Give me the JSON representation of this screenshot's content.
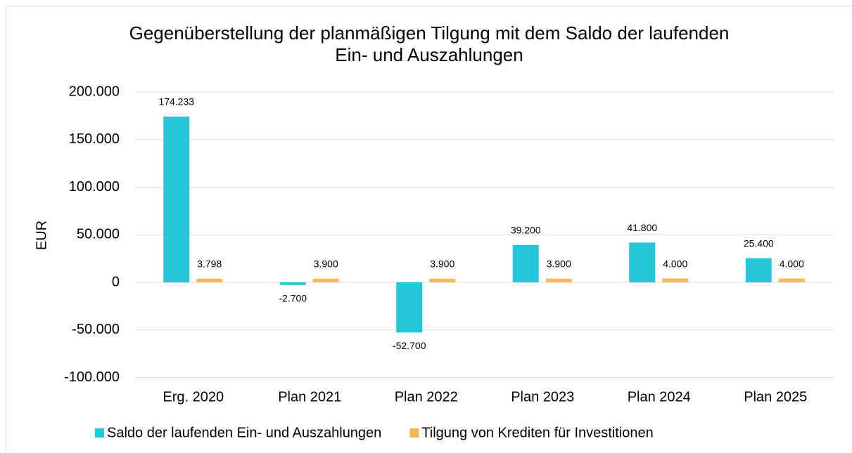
{
  "chart_data": {
    "type": "bar",
    "title": "Gegenüberstellung der planmäßigen Tilgung mit dem Saldo der laufenden Ein- und Auszahlungen",
    "y_label": "EUR",
    "categories": [
      "Erg. 2020",
      "Plan 2021",
      "Plan 2022",
      "Plan 2023",
      "Plan 2024",
      "Plan 2025"
    ],
    "series": [
      {
        "name": "Saldo der laufenden Ein- und Auszahlungen",
        "color": "#26c6da",
        "values": [
          174233,
          -2700,
          -52700,
          39200,
          41800,
          25400
        ],
        "value_labels": [
          "174.233",
          "-2.700",
          "-52.700",
          "39.200",
          "41.800",
          "25.400"
        ]
      },
      {
        "name": "Tilgung von Krediten für Investitionen",
        "color": "#fbb858",
        "values": [
          3798,
          3900,
          3900,
          3900,
          4000,
          4000
        ],
        "value_labels": [
          "3.798",
          "3.900",
          "3.900",
          "3.900",
          "4.000",
          "4.000"
        ]
      }
    ],
    "ylim": [
      -100000,
      200000
    ],
    "yticks": [
      {
        "value": -100000,
        "label": "-100.000"
      },
      {
        "value": -50000,
        "label": "-50.000"
      },
      0,
      {
        "value": 50000,
        "label": "50.000"
      },
      {
        "value": 100000,
        "label": "100.000"
      },
      {
        "value": 150000,
        "label": "150.000"
      },
      {
        "value": 200000,
        "label": "200.000"
      }
    ],
    "grid": true,
    "legend": "bottom"
  }
}
